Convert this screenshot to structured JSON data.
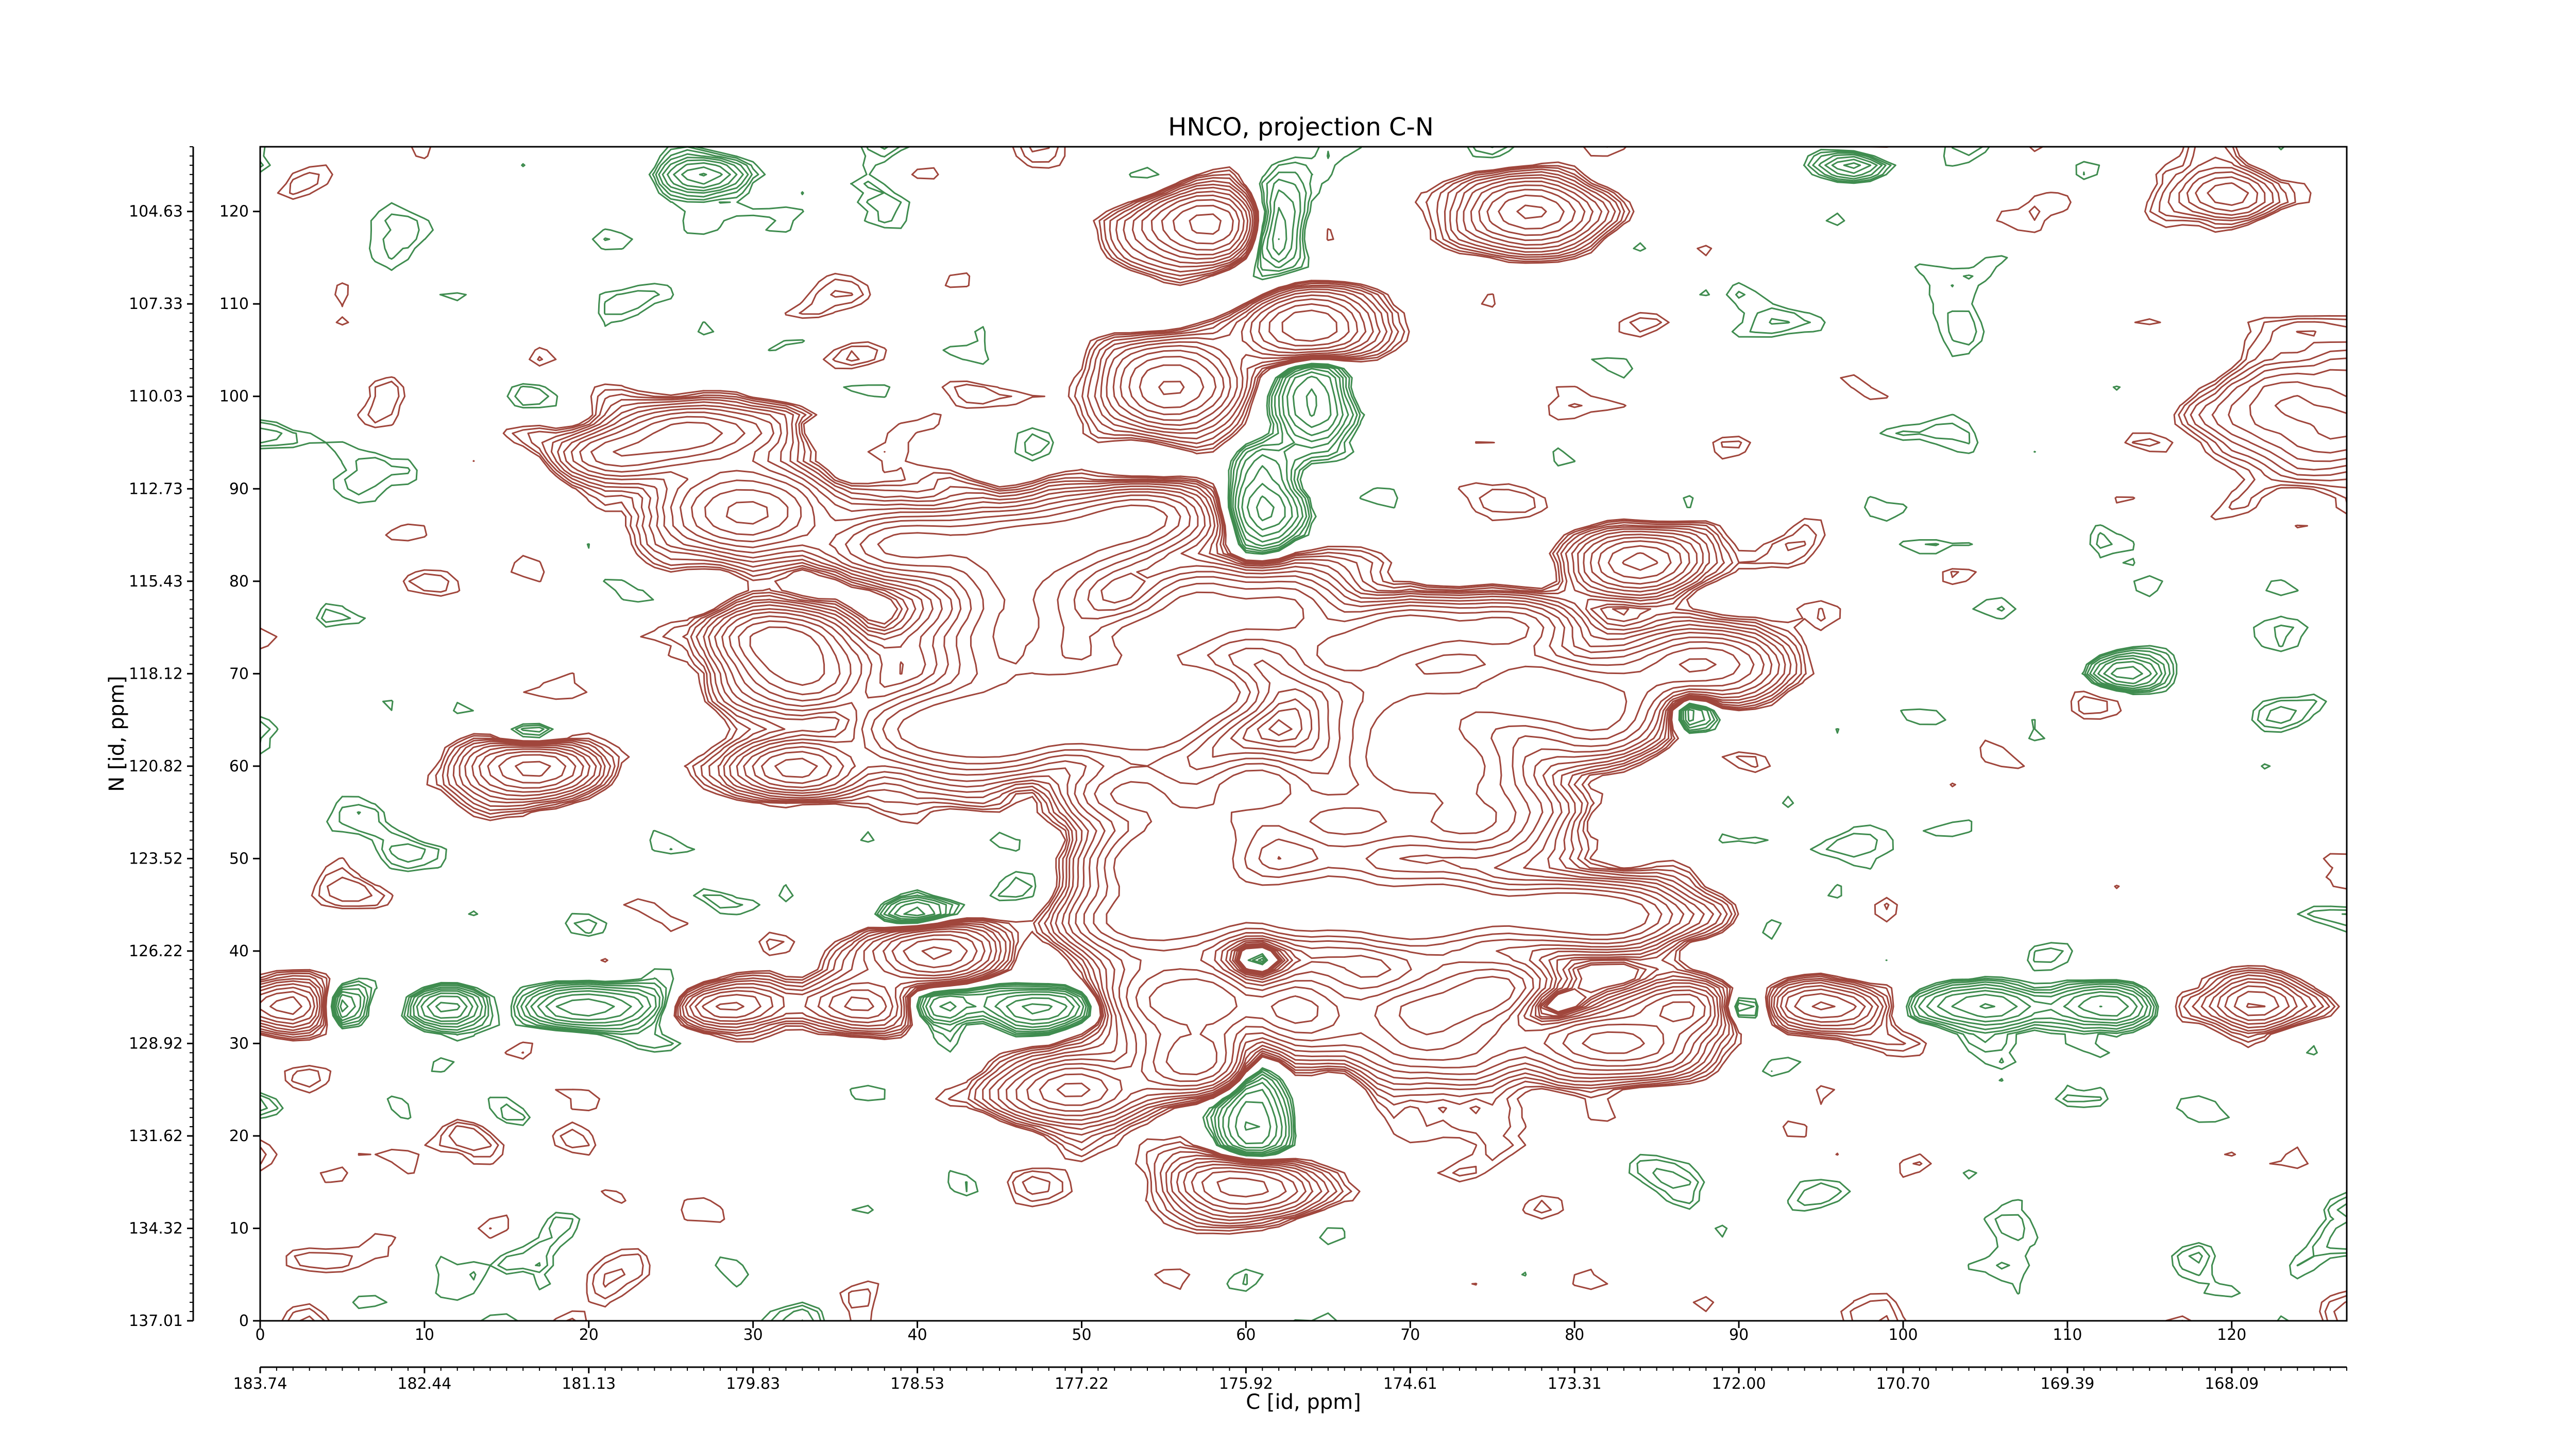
{
  "chart_data": {
    "type": "contour",
    "title": "HNCO, projection C-N",
    "xlabel": "C [id, ppm]",
    "ylabel": "N [id, ppm]",
    "xlim": [
      0,
      127
    ],
    "ylim": [
      0,
      127
    ],
    "x_index_ticks": [
      "0",
      "10",
      "20",
      "30",
      "40",
      "50",
      "60",
      "70",
      "80",
      "90",
      "100",
      "110",
      "120"
    ],
    "x_ppm_ticks": [
      "183.74",
      "182.44",
      "181.13",
      "179.83",
      "178.53",
      "177.22",
      "175.92",
      "174.61",
      "173.31",
      "172.00",
      "170.70",
      "169.39",
      "168.09"
    ],
    "y_index_ticks": [
      "0",
      "10",
      "20",
      "30",
      "40",
      "50",
      "60",
      "70",
      "80",
      "90",
      "100",
      "110",
      "120"
    ],
    "y_ppm_ticks": [
      "137.01",
      "134.32",
      "131.62",
      "128.92",
      "126.22",
      "123.52",
      "120.82",
      "118.12",
      "115.43",
      "112.73",
      "110.03",
      "107.33",
      "104.63"
    ],
    "colors": {
      "positive": "#a0463c",
      "negative": "#3f8c4f",
      "axis": "#000000"
    },
    "peaks": [
      {
        "x": 57.8,
        "y": 118.5,
        "w": 2.6,
        "h": 2.4,
        "a": 1.0
      },
      {
        "x": 77.5,
        "y": 120.0,
        "w": 2.4,
        "h": 2.4,
        "a": 1.0
      },
      {
        "x": 64.0,
        "y": 107.2,
        "w": 2.4,
        "h": 2.4,
        "a": 1.0
      },
      {
        "x": 55.5,
        "y": 101.0,
        "w": 2.4,
        "h": 3.0,
        "a": 1.0
      },
      {
        "x": 26.0,
        "y": 96.0,
        "w": 2.4,
        "h": 2.0,
        "a": 0.9
      },
      {
        "x": 21.5,
        "y": 93.5,
        "w": 2.2,
        "h": 1.8,
        "a": 0.6
      },
      {
        "x": 31.5,
        "y": 96.5,
        "w": 2.0,
        "h": 1.6,
        "a": 0.6
      },
      {
        "x": 29.5,
        "y": 87.5,
        "w": 3.0,
        "h": 3.0,
        "a": 1.0
      },
      {
        "x": 53.5,
        "y": 87.0,
        "w": 2.8,
        "h": 2.2,
        "a": 1.0
      },
      {
        "x": 39.0,
        "y": 84.0,
        "w": 2.6,
        "h": 2.2,
        "a": 1.0
      },
      {
        "x": 47.5,
        "y": 84.0,
        "w": 4.0,
        "h": 2.6,
        "a": 1.0
      },
      {
        "x": 84.0,
        "y": 82.0,
        "w": 2.4,
        "h": 2.2,
        "a": 1.0
      },
      {
        "x": 46.0,
        "y": 75.0,
        "w": 3.0,
        "h": 6.0,
        "a": 1.0
      },
      {
        "x": 31.5,
        "y": 74.0,
        "w": 2.4,
        "h": 2.0,
        "a": 1.0
      },
      {
        "x": 33.0,
        "y": 70.0,
        "w": 2.6,
        "h": 2.4,
        "a": 1.0
      },
      {
        "x": 54.0,
        "y": 74.0,
        "w": 2.4,
        "h": 2.0,
        "a": 1.0
      },
      {
        "x": 57.0,
        "y": 77.0,
        "w": 2.2,
        "h": 2.6,
        "a": 0.9
      },
      {
        "x": 62.0,
        "y": 77.0,
        "w": 2.6,
        "h": 3.0,
        "a": 1.0
      },
      {
        "x": 66.0,
        "y": 72.0,
        "w": 2.4,
        "h": 2.0,
        "a": 0.8
      },
      {
        "x": 70.0,
        "y": 75.0,
        "w": 2.4,
        "h": 2.0,
        "a": 1.0
      },
      {
        "x": 76.0,
        "y": 75.0,
        "w": 2.4,
        "h": 2.0,
        "a": 1.0
      },
      {
        "x": 87.5,
        "y": 71.0,
        "w": 3.0,
        "h": 2.4,
        "a": 1.0
      },
      {
        "x": 53.5,
        "y": 68.0,
        "w": 3.0,
        "h": 2.4,
        "a": 1.0
      },
      {
        "x": 58.0,
        "y": 68.0,
        "w": 2.4,
        "h": 2.4,
        "a": 0.9
      },
      {
        "x": 50.0,
        "y": 66.0,
        "w": 2.4,
        "h": 2.4,
        "a": 0.9
      },
      {
        "x": 41.0,
        "y": 64.0,
        "w": 3.0,
        "h": 3.0,
        "a": 1.0
      },
      {
        "x": 45.5,
        "y": 64.0,
        "w": 2.6,
        "h": 2.6,
        "a": 1.0
      },
      {
        "x": 54.0,
        "y": 64.0,
        "w": 2.8,
        "h": 2.8,
        "a": 1.0
      },
      {
        "x": 70.0,
        "y": 66.0,
        "w": 3.6,
        "h": 3.6,
        "a": 1.0
      },
      {
        "x": 77.0,
        "y": 68.5,
        "w": 2.4,
        "h": 2.8,
        "a": 1.0
      },
      {
        "x": 81.5,
        "y": 66.0,
        "w": 2.6,
        "h": 3.0,
        "a": 1.0
      },
      {
        "x": 16.5,
        "y": 60.0,
        "w": 2.4,
        "h": 2.0,
        "a": 1.0
      },
      {
        "x": 32.5,
        "y": 60.0,
        "w": 2.4,
        "h": 2.0,
        "a": 1.0
      },
      {
        "x": 60.5,
        "y": 58.0,
        "w": 2.0,
        "h": 2.0,
        "a": 1.0
      },
      {
        "x": 71.0,
        "y": 60.0,
        "w": 4.0,
        "h": 2.4,
        "a": 1.0
      },
      {
        "x": 53.0,
        "y": 57.0,
        "w": 2.6,
        "h": 2.2,
        "a": 0.9
      },
      {
        "x": 57.0,
        "y": 52.0,
        "w": 3.0,
        "h": 3.0,
        "a": 1.0
      },
      {
        "x": 66.0,
        "y": 54.0,
        "w": 3.0,
        "h": 2.6,
        "a": 1.0
      },
      {
        "x": 74.0,
        "y": 54.0,
        "w": 3.0,
        "h": 2.6,
        "a": 1.0
      },
      {
        "x": 54.0,
        "y": 49.0,
        "w": 2.4,
        "h": 2.4,
        "a": 0.9
      },
      {
        "x": 53.0,
        "y": 43.0,
        "w": 2.6,
        "h": 2.2,
        "a": 1.0
      },
      {
        "x": 57.5,
        "y": 45.0,
        "w": 2.6,
        "h": 3.0,
        "a": 1.0
      },
      {
        "x": 62.0,
        "y": 44.0,
        "w": 2.6,
        "h": 2.4,
        "a": 1.0
      },
      {
        "x": 65.5,
        "y": 46.0,
        "w": 2.4,
        "h": 2.6,
        "a": 0.9
      },
      {
        "x": 69.5,
        "y": 43.5,
        "w": 2.6,
        "h": 2.4,
        "a": 1.0
      },
      {
        "x": 73.0,
        "y": 45.0,
        "w": 2.6,
        "h": 2.4,
        "a": 1.0
      },
      {
        "x": 79.0,
        "y": 44.0,
        "w": 2.6,
        "h": 2.2,
        "a": 1.0
      },
      {
        "x": 83.0,
        "y": 44.0,
        "w": 2.6,
        "h": 2.2,
        "a": 1.0
      },
      {
        "x": 41.0,
        "y": 40.0,
        "w": 2.4,
        "h": 2.0,
        "a": 1.0
      },
      {
        "x": 56.0,
        "y": 35.0,
        "w": 3.2,
        "h": 3.0,
        "a": 1.0
      },
      {
        "x": 62.0,
        "y": 33.5,
        "w": 3.0,
        "h": 3.2,
        "a": 1.0
      },
      {
        "x": 71.5,
        "y": 32.5,
        "w": 3.2,
        "h": 4.0,
        "a": 1.0
      },
      {
        "x": 75.5,
        "y": 36.0,
        "w": 2.2,
        "h": 2.0,
        "a": 0.8
      },
      {
        "x": 82.5,
        "y": 30.0,
        "w": 3.2,
        "h": 2.2,
        "a": 1.0
      },
      {
        "x": 57.0,
        "y": 28.0,
        "w": 2.4,
        "h": 2.2,
        "a": 1.0
      },
      {
        "x": 49.5,
        "y": 25.0,
        "w": 2.6,
        "h": 2.2,
        "a": 1.0
      },
      {
        "x": 60.0,
        "y": 14.5,
        "w": 2.4,
        "h": 2.2,
        "a": 1.0
      },
      {
        "x": 2.0,
        "y": 34.0,
        "w": 1.8,
        "h": 1.8,
        "a": 0.6
      },
      {
        "x": 29.0,
        "y": 34.0,
        "w": 2.6,
        "h": 1.6,
        "a": 0.5
      },
      {
        "x": 37.0,
        "y": 34.0,
        "w": 2.0,
        "h": 1.8,
        "a": 0.6
      },
      {
        "x": 87.0,
        "y": 34.0,
        "w": 1.8,
        "h": 1.8,
        "a": 0.7
      },
      {
        "x": 95.0,
        "y": 34.0,
        "w": 2.4,
        "h": 1.6,
        "a": 0.5
      },
      {
        "x": 121.5,
        "y": 34.0,
        "w": 1.6,
        "h": 1.8,
        "a": 0.6
      },
      {
        "x": 125.0,
        "y": 98.0,
        "w": 4.0,
        "h": 4.0,
        "a": 0.45
      },
      {
        "x": 120.0,
        "y": 122.0,
        "w": 2.0,
        "h": 2.0,
        "a": 0.4
      }
    ],
    "neg_peaks": [
      {
        "x": 61.5,
        "y": 118.0,
        "w": 1.4,
        "h": 3.0,
        "a": 0.55
      },
      {
        "x": 64.0,
        "y": 100.0,
        "w": 1.4,
        "h": 4.0,
        "a": 0.5
      },
      {
        "x": 61.0,
        "y": 88.0,
        "w": 1.4,
        "h": 4.0,
        "a": 0.45
      },
      {
        "x": 60.5,
        "y": 26.0,
        "w": 1.4,
        "h": 8.0,
        "a": 0.55
      },
      {
        "x": 60.5,
        "y": 40.0,
        "w": 1.4,
        "h": 4.0,
        "a": 0.45
      },
      {
        "x": 5.0,
        "y": 34.0,
        "w": 1.0,
        "h": 1.4,
        "a": 0.5
      },
      {
        "x": 11.5,
        "y": 34.0,
        "w": 1.6,
        "h": 1.4,
        "a": 0.55
      },
      {
        "x": 20.5,
        "y": 34.0,
        "w": 3.0,
        "h": 1.4,
        "a": 0.55
      },
      {
        "x": 41.5,
        "y": 34.0,
        "w": 1.6,
        "h": 1.4,
        "a": 0.45
      },
      {
        "x": 48.0,
        "y": 34.0,
        "w": 2.4,
        "h": 1.4,
        "a": 0.55
      },
      {
        "x": 78.0,
        "y": 34.0,
        "w": 1.4,
        "h": 1.4,
        "a": 0.45
      },
      {
        "x": 90.0,
        "y": 34.0,
        "w": 1.4,
        "h": 1.2,
        "a": 0.4
      },
      {
        "x": 105.0,
        "y": 34.0,
        "w": 2.6,
        "h": 1.4,
        "a": 0.55
      },
      {
        "x": 112.5,
        "y": 34.0,
        "w": 1.8,
        "h": 1.4,
        "a": 0.5
      },
      {
        "x": 113.5,
        "y": 70.0,
        "w": 1.6,
        "h": 1.2,
        "a": 0.4
      },
      {
        "x": 87.0,
        "y": 66.0,
        "w": 1.0,
        "h": 1.6,
        "a": 0.4
      },
      {
        "x": 33.0,
        "y": 96.5,
        "w": 1.8,
        "h": 1.2,
        "a": 0.4
      },
      {
        "x": 40.0,
        "y": 44.0,
        "w": 1.6,
        "h": 1.2,
        "a": 0.35
      },
      {
        "x": 16.5,
        "y": 63.0,
        "w": 1.4,
        "h": 1.0,
        "a": 0.35
      },
      {
        "x": 27.0,
        "y": 124.0,
        "w": 1.6,
        "h": 1.2,
        "a": 0.4
      },
      {
        "x": 97.0,
        "y": 125.0,
        "w": 1.4,
        "h": 1.0,
        "a": 0.35
      }
    ]
  }
}
